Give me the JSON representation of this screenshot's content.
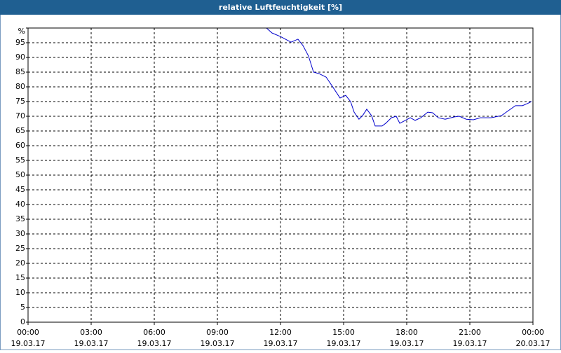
{
  "chart_data": {
    "type": "line",
    "title": "relative Luftfeuchtigkeit [%]",
    "x": [
      11.33,
      11.6,
      12.0,
      12.5,
      12.83,
      13.07,
      13.33,
      13.57,
      13.83,
      14.17,
      14.5,
      14.83,
      15.1,
      15.33,
      15.5,
      15.73,
      15.9,
      16.1,
      16.33,
      16.5,
      16.83,
      17.0,
      17.27,
      17.5,
      17.67,
      17.93,
      18.17,
      18.4,
      18.67,
      19.0,
      19.23,
      19.5,
      19.83,
      20.27,
      20.5,
      20.83,
      21.17,
      21.5,
      22.0,
      22.5,
      22.83,
      23.17,
      23.5,
      23.73,
      23.93
    ],
    "series": [
      {
        "color": "#0000cc",
        "values": [
          100,
          98.3,
          97.1,
          95.2,
          96.2,
          94,
          90.5,
          85,
          84.5,
          83.3,
          79.8,
          76.2,
          77.1,
          75,
          71.4,
          69,
          70.2,
          72.4,
          70.2,
          66.7,
          66.7,
          67.6,
          69.5,
          70,
          67.6,
          68.6,
          69.5,
          68.6,
          69.5,
          71.4,
          71.2,
          69.5,
          69,
          69.8,
          70,
          69,
          68.8,
          69.5,
          69.5,
          70.2,
          71.9,
          73.6,
          73.6,
          74.3,
          75
        ]
      }
    ],
    "xlim": [
      0,
      24
    ],
    "xticks": [
      {
        "value": 0,
        "label": "00:00",
        "date": "19.03.17"
      },
      {
        "value": 3,
        "label": "03:00",
        "date": "19.03.17"
      },
      {
        "value": 6,
        "label": "06:00",
        "date": "19.03.17"
      },
      {
        "value": 9,
        "label": "09:00",
        "date": "19.03.17"
      },
      {
        "value": 12,
        "label": "12:00",
        "date": "19.03.17"
      },
      {
        "value": 15,
        "label": "15:00",
        "date": "19.03.17"
      },
      {
        "value": 18,
        "label": "18:00",
        "date": "19.03.17"
      },
      {
        "value": 21,
        "label": "21:00",
        "date": "19.03.17"
      },
      {
        "value": 24,
        "label": "00:00",
        "date": "20.03.17"
      }
    ],
    "ylim": [
      0,
      100
    ],
    "yticks": [
      0,
      5,
      10,
      15,
      20,
      25,
      30,
      35,
      40,
      45,
      50,
      55,
      60,
      65,
      70,
      75,
      80,
      85,
      90,
      95,
      {
        "value": 100,
        "label": "%"
      }
    ],
    "grid": true
  }
}
